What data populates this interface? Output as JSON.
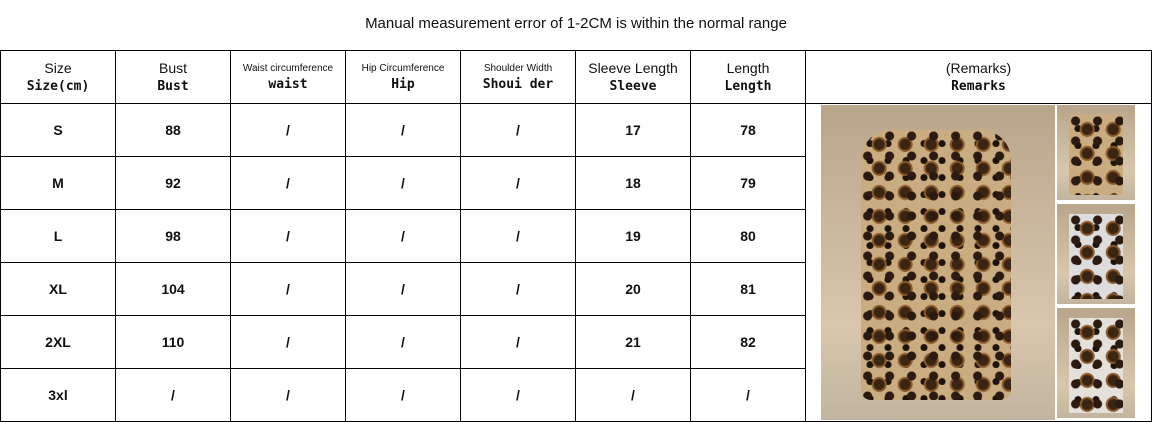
{
  "title": "Manual measurement error of 1-2CM is within the normal range",
  "headers": [
    {
      "l1": "Size",
      "l2": "Size(cm)"
    },
    {
      "l1": "Bust",
      "l2": "Bust"
    },
    {
      "l1": "Waist circumference",
      "l2": "waist"
    },
    {
      "l1": "Hip Circumference",
      "l2": "Hip"
    },
    {
      "l1": "Shoulder Width",
      "l2": "Shoui der"
    },
    {
      "l1": "Sleeve Length",
      "l2": "Sleeve"
    },
    {
      "l1": "Length",
      "l2": "Length"
    },
    {
      "l1": "(Remarks)",
      "l2": "Remarks"
    }
  ],
  "rows": [
    [
      "S",
      "88",
      "/",
      "/",
      "/",
      "17",
      "78"
    ],
    [
      "M",
      "92",
      "/",
      "/",
      "/",
      "18",
      "79"
    ],
    [
      "L",
      "98",
      "/",
      "/",
      "/",
      "19",
      "80"
    ],
    [
      "XL",
      "104",
      "/",
      "/",
      "/",
      "20",
      "81"
    ],
    [
      "2XL",
      "110",
      "/",
      "/",
      "/",
      "21",
      "82"
    ],
    [
      "3xl",
      "/",
      "/",
      "/",
      "/",
      "/",
      "/"
    ]
  ]
}
